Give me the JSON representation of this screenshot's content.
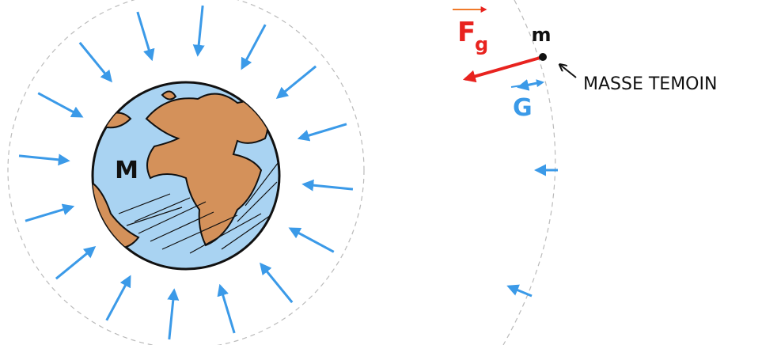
{
  "earth": {
    "label": "M"
  },
  "test_mass": {
    "label": "m",
    "annotation": "MASSE TEMOIN"
  },
  "force": {
    "symbol": "F",
    "subscript": "g"
  },
  "field": {
    "symbol": "G"
  }
}
